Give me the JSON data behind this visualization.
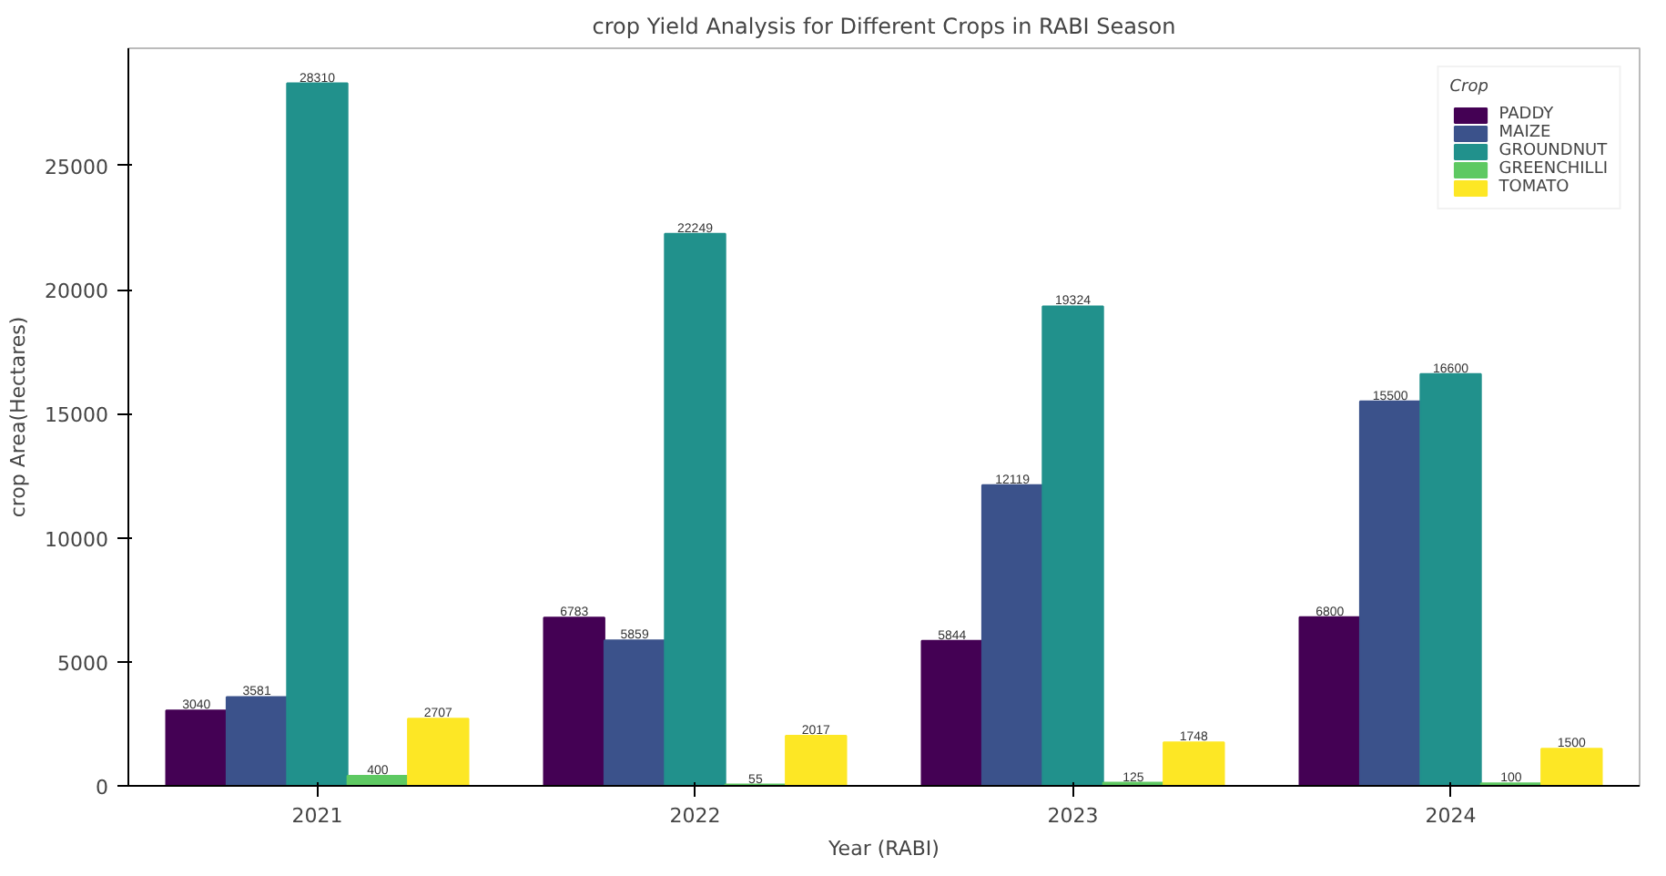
{
  "chart_data": {
    "type": "bar",
    "title": "crop Yield Analysis for Different Crops in RABI Season",
    "xlabel": "Year (RABI)",
    "ylabel": "crop Area(Hectares)",
    "legend_title": "Crop",
    "categories": [
      "2021",
      "2022",
      "2023",
      "2024"
    ],
    "series": [
      {
        "name": "PADDY",
        "color": "#440154",
        "values": [
          3040,
          6783,
          5844,
          6800
        ]
      },
      {
        "name": "MAIZE",
        "color": "#3b528b",
        "values": [
          3581,
          5859,
          12119,
          15500
        ]
      },
      {
        "name": "GROUNDNUT",
        "color": "#21918c",
        "values": [
          28310,
          22249,
          19324,
          16600
        ]
      },
      {
        "name": "GREENCHILLI",
        "color": "#5ec962",
        "values": [
          400,
          55,
          125,
          100
        ]
      },
      {
        "name": "TOMATO",
        "color": "#fde725",
        "values": [
          2707,
          2017,
          1748,
          1500
        ]
      }
    ],
    "ylim": [
      0,
      29725
    ],
    "yticks": [
      0,
      5000,
      10000,
      15000,
      20000,
      25000
    ],
    "data_labels": true,
    "legend": "top right",
    "grid": false
  }
}
